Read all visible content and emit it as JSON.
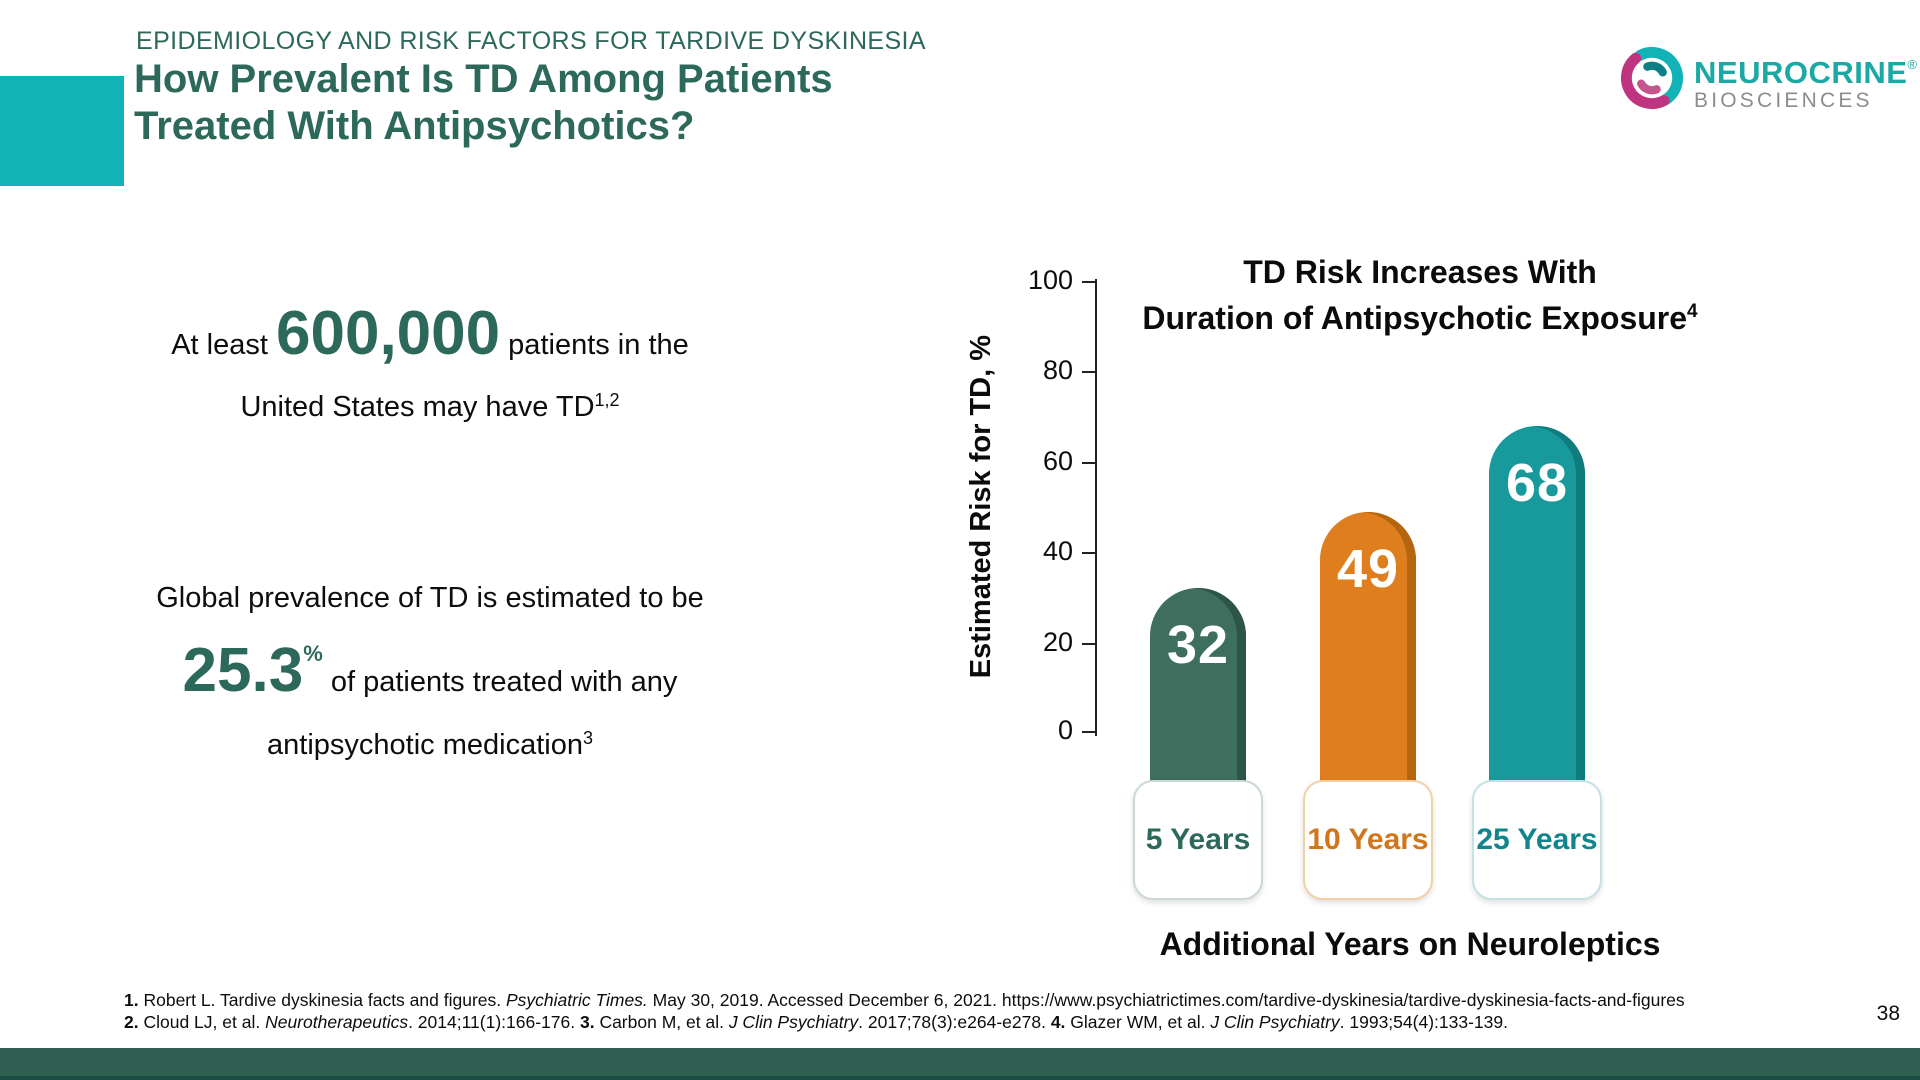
{
  "slide": {
    "kicker": "EPIDEMIOLOGY AND RISK FACTORS FOR TARDIVE DYSKINESIA",
    "title_line1": "How Prevalent Is TD Among Patients",
    "title_line2": "Treated With Antipsychotics?",
    "page_number": "38",
    "heading_color": "#2d695b",
    "accent_color": "#12b3b6",
    "footer_bar_color": "#2f5f51"
  },
  "logo": {
    "brand": "NEUROCRINE",
    "registered": "®",
    "sub_brand": "BIOSCIENCES",
    "brand_color": "#1ca9a4",
    "sub_color": "#898d90",
    "swirl_teal": "#12b3b6",
    "swirl_dark_teal": "#0e7f85",
    "swirl_magenta": "#bf3480"
  },
  "stats": {
    "stat1": {
      "segments": [
        {
          "t": "At least ",
          "c": ""
        },
        {
          "t": "600,000",
          "c": "num"
        },
        {
          "t": " patients in the",
          "c": ""
        },
        {
          "c": "br"
        },
        {
          "t": "United States may have TD",
          "c": ""
        },
        {
          "t": "1,2",
          "c": "sup"
        }
      ]
    },
    "stat2": {
      "segments": [
        {
          "t": "Global prevalence of TD is estimated to be",
          "c": ""
        },
        {
          "c": "br"
        },
        {
          "t": "25.3",
          "c": "num"
        },
        {
          "t": "%",
          "c": "numsup"
        },
        {
          "t": " of patients treated with any",
          "c": ""
        },
        {
          "c": "br"
        },
        {
          "t": "antipsychotic medication",
          "c": ""
        },
        {
          "t": "3",
          "c": "sup"
        }
      ]
    }
  },
  "chart_data": {
    "type": "bar",
    "title_segments": [
      {
        "t": "TD Risk Increases With",
        "c": ""
      },
      {
        "c": "br"
      },
      {
        "t": "Duration of Antipsychotic Exposure",
        "c": ""
      },
      {
        "t": "4",
        "c": "sup"
      }
    ],
    "title": "TD Risk Increases With Duration of Antipsychotic Exposure",
    "ylabel": "Estimated Risk for TD, %",
    "xlabel": "Additional Years on Neuroleptics",
    "ylim": [
      0,
      100
    ],
    "yticks": [
      0,
      20,
      40,
      60,
      80,
      100
    ],
    "categories": [
      "5 Years",
      "10 Years",
      "25 Years"
    ],
    "values": [
      32,
      49,
      68
    ],
    "bar_colors": [
      "#3e6e5d",
      "#de7e1f",
      "#189a9c"
    ],
    "bar_shadow_colors": [
      "#2d5546",
      "#b5650f",
      "#0f7c7e"
    ],
    "label_text_colors": [
      "#2d695b",
      "#d1761b",
      "#11858d"
    ],
    "box_border_colors": [
      "#ccd9d2",
      "#f2d0a6",
      "#c3e2e4"
    ],
    "value_label_color": "#ffffff",
    "legend": "none",
    "grid": "off"
  },
  "footnotes": {
    "line1_segments": [
      {
        "t": "1.",
        "c": "b"
      },
      {
        "t": " Robert L. Tardive dyskinesia facts and figures. ",
        "c": ""
      },
      {
        "t": "Psychiatric Times.",
        "c": "i"
      },
      {
        "t": " May 30, 2019. Accessed December 6, 2021.  https://www.psychiatrictimes.com/tardive-dyskinesia/tardive-dyskinesia-facts-and-figures",
        "c": ""
      }
    ],
    "line2_segments": [
      {
        "t": "2.",
        "c": "b"
      },
      {
        "t": " Cloud LJ, et al. ",
        "c": ""
      },
      {
        "t": "Neurotherapeutics",
        "c": "i"
      },
      {
        "t": ". 2014;11(1):166-176. ",
        "c": ""
      },
      {
        "t": "3.",
        "c": "b"
      },
      {
        "t": " Carbon M, et al. ",
        "c": ""
      },
      {
        "t": "J Clin Psychiatry",
        "c": "i"
      },
      {
        "t": ". 2017;78(3):e264-e278. ",
        "c": ""
      },
      {
        "t": "4.",
        "c": "b"
      },
      {
        "t": " Glazer WM, et al. ",
        "c": ""
      },
      {
        "t": "J Clin Psychiatry",
        "c": "i"
      },
      {
        "t": ". 1993;54(4):133-139.",
        "c": ""
      }
    ]
  }
}
